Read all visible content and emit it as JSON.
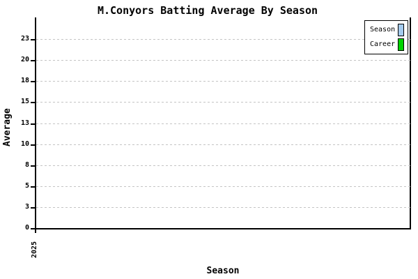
{
  "title": "M.Conyors Batting Average By Season",
  "colors": {
    "season_series": "#a5cbee",
    "career_series": "#00d400",
    "gridline": "#c4c4c4",
    "axis": "#000000",
    "background": "#ffffff"
  },
  "legend": {
    "items": [
      {
        "label": "Season",
        "color": "#a5cbee"
      },
      {
        "label": "Career",
        "color": "#00d400"
      }
    ]
  },
  "chart_data": {
    "type": "bar",
    "title": "M.Conyors Batting Average By Season",
    "xlabel": "Season",
    "ylabel": "Average",
    "categories": [
      "2025"
    ],
    "series": [
      {
        "name": "Season",
        "color": "#a5cbee",
        "values": [
          0
        ]
      },
      {
        "name": "Career",
        "color": "#00d400",
        "values": [
          0
        ]
      }
    ],
    "y_ticks": [
      "0",
      "3",
      "5",
      "8",
      "10",
      "13",
      "15",
      "18",
      "20",
      "23"
    ],
    "ylim": [
      0,
      25.25
    ],
    "grid": "horizontal-dashed",
    "legend_position": "top-right"
  }
}
